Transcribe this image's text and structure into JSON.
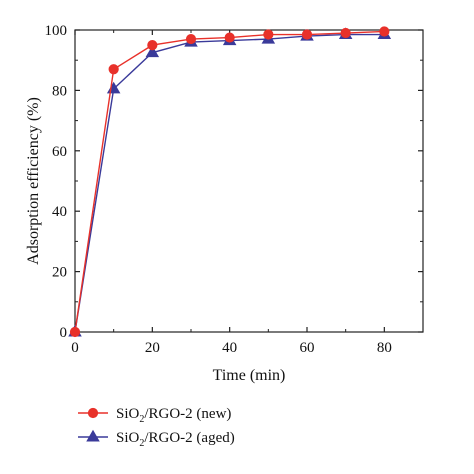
{
  "chart_data": {
    "type": "line",
    "title": "",
    "xlabel": "Time (min)",
    "ylabel": "Adsorption efficiency (%)",
    "xlim": [
      0,
      90
    ],
    "ylim": [
      0,
      100
    ],
    "xticks": [
      0,
      20,
      40,
      60,
      80
    ],
    "yticks": [
      0,
      20,
      40,
      60,
      80,
      100
    ],
    "grid": false,
    "legend_position": "bottom",
    "series": [
      {
        "name_parts": [
          "SiO",
          "2",
          "/RGO-2 (new)"
        ],
        "marker": "circle",
        "color": "#e8312a",
        "x": [
          0,
          10,
          20,
          30,
          40,
          50,
          60,
          70,
          80
        ],
        "y": [
          0,
          87,
          95,
          97,
          97.5,
          98.5,
          98.5,
          99,
          99.5
        ]
      },
      {
        "name_parts": [
          "SiO",
          "2",
          "/RGO-2 (aged)"
        ],
        "marker": "triangle",
        "color": "#3a3a9a",
        "x": [
          0,
          10,
          20,
          30,
          40,
          50,
          60,
          70,
          80
        ],
        "y": [
          0,
          80.5,
          92.5,
          96,
          96.5,
          97,
          98,
          98.5,
          98.5
        ]
      }
    ]
  }
}
